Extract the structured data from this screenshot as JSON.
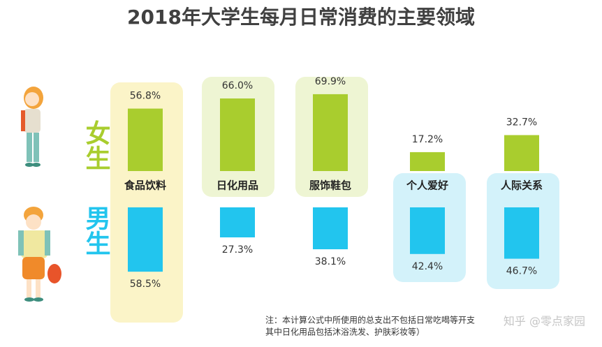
{
  "chart_data": {
    "type": "bar",
    "title": "2018年大学生每月日常消费的主要领域",
    "categories": [
      "食品饮料",
      "日化用品",
      "服饰鞋包",
      "个人爱好",
      "人际关系"
    ],
    "series": [
      {
        "name": "女生",
        "color": "#a9cd2e",
        "values": [
          56.8,
          66.0,
          69.9,
          17.2,
          32.7
        ],
        "value_labels": [
          "56.8%",
          "66.0%",
          "69.9%",
          "17.2%",
          "32.7%"
        ]
      },
      {
        "name": "男生",
        "color": "#22c5ee",
        "values": [
          58.5,
          27.3,
          38.1,
          42.4,
          46.7
        ],
        "value_labels": [
          "58.5%",
          "27.3%",
          "38.1%",
          "42.4%",
          "46.7%"
        ]
      }
    ],
    "notes": [
      "注：本计算公式中所使用的总支出不包括日常吃喝等开支",
      "其中日化用品包括沐浴洗发、护肤彩妆等）"
    ],
    "watermark": "知乎 @零点家园"
  }
}
